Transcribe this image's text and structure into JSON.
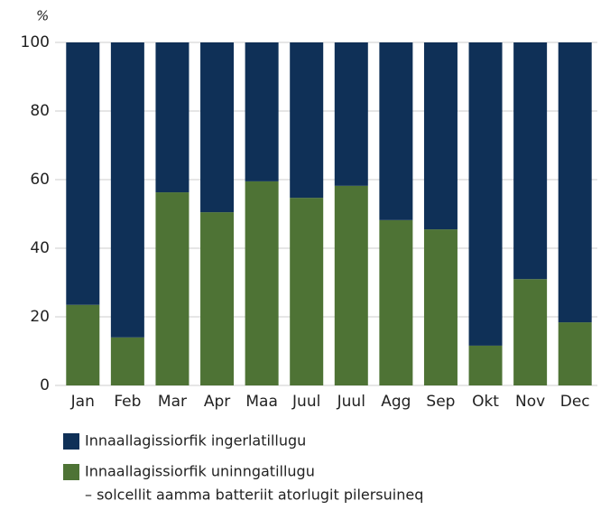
{
  "chart_data": {
    "type": "stacked_bar",
    "y_label": "%",
    "categories": [
      "Jan",
      "Feb",
      "Mar",
      "Apr",
      "Maa",
      "Juul",
      "Juul",
      "Agg",
      "Sep",
      "Okt",
      "Nov",
      "Dec"
    ],
    "series": [
      {
        "name": "Innaallagissiorfik ingerlatillugu",
        "color": "#0f3057",
        "values": [
          76.5,
          86,
          43.7,
          49.5,
          40.5,
          45.3,
          41.8,
          51.8,
          54.5,
          88.4,
          69,
          81.6
        ]
      },
      {
        "name": "Innaallagissiorfik uninngatillugu",
        "note": "– solcellit aamma batteriit atorlugit pilersuineq",
        "color": "#4e7335",
        "values": [
          23.5,
          14,
          56.3,
          50.5,
          59.5,
          54.7,
          58.2,
          48.2,
          45.5,
          11.6,
          31,
          18.4
        ]
      }
    ],
    "ylim": [
      0,
      100
    ],
    "yticks": [
      0,
      20,
      40,
      60,
      80,
      100
    ],
    "grid": true
  }
}
